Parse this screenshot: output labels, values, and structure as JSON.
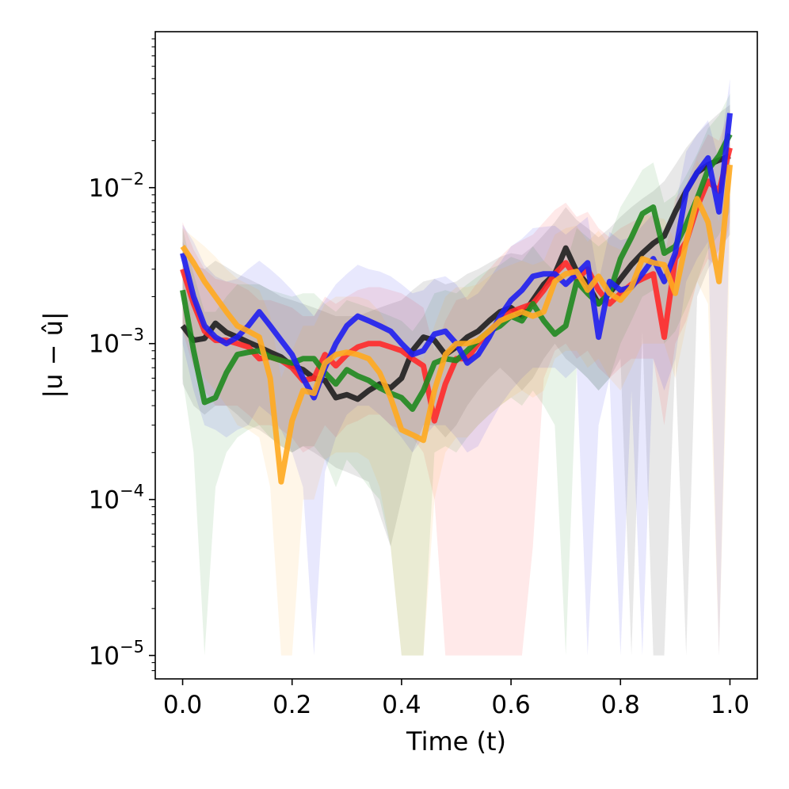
{
  "chart_data": {
    "type": "line",
    "xlabel": "Time (t)",
    "ylabel": "|u − û|",
    "xlim": [
      -0.05,
      1.05
    ],
    "ylim_log10": [
      -5.15,
      -1.0
    ],
    "y_scale": "log",
    "grid": false,
    "legend": "none",
    "x_ticks": [
      {
        "value": 0.0,
        "label": "0.0"
      },
      {
        "value": 0.2,
        "label": "0.2"
      },
      {
        "value": 0.4,
        "label": "0.4"
      },
      {
        "value": 0.6,
        "label": "0.6"
      },
      {
        "value": 0.8,
        "label": "0.8"
      },
      {
        "value": 1.0,
        "label": "1.0"
      }
    ],
    "y_ticks": [
      {
        "exp": -2,
        "base": "10",
        "sup": "−2"
      },
      {
        "exp": -3,
        "base": "10",
        "sup": "−3"
      },
      {
        "exp": -4,
        "base": "10",
        "sup": "−4"
      },
      {
        "exp": -5,
        "base": "10",
        "sup": "−5"
      }
    ],
    "x": [
      0.0,
      0.02,
      0.04,
      0.06,
      0.08,
      0.1,
      0.12,
      0.14,
      0.16,
      0.18,
      0.2,
      0.22,
      0.24,
      0.26,
      0.28,
      0.3,
      0.32,
      0.34,
      0.36,
      0.38,
      0.4,
      0.42,
      0.44,
      0.46,
      0.48,
      0.5,
      0.52,
      0.54,
      0.56,
      0.58,
      0.6,
      0.62,
      0.64,
      0.66,
      0.68,
      0.7,
      0.72,
      0.74,
      0.76,
      0.78,
      0.8,
      0.82,
      0.84,
      0.86,
      0.88,
      0.9,
      0.92,
      0.94,
      0.96,
      0.98,
      1.0
    ],
    "series": [
      {
        "color": "#1f1f1f",
        "values": [
          0.0013,
          0.00105,
          0.00108,
          0.00135,
          0.00118,
          0.0011,
          0.00102,
          0.00095,
          0.00088,
          0.00082,
          0.00072,
          0.00068,
          0.0006,
          0.00058,
          0.00045,
          0.00047,
          0.00044,
          0.0005,
          0.00055,
          0.00052,
          0.0006,
          0.0009,
          0.0011,
          0.00105,
          0.00085,
          0.00095,
          0.0011,
          0.0012,
          0.0014,
          0.0016,
          0.0017,
          0.0015,
          0.0019,
          0.0024,
          0.0028,
          0.0041,
          0.0029,
          0.0024,
          0.0018,
          0.0021,
          0.0026,
          0.0032,
          0.0038,
          0.0044,
          0.0049,
          0.007,
          0.0095,
          0.0125,
          0.014,
          0.015,
          0.016
        ],
        "lower": [
          0.00055,
          0.0004,
          0.00035,
          0.0004,
          0.0004,
          0.00035,
          0.0003,
          0.00028,
          0.00025,
          0.00022,
          0.0002,
          0.00022,
          0.0002,
          0.00018,
          0.00016,
          0.00015,
          0.00014,
          0.00013,
          8e-05,
          5e-05,
          0.0001,
          0.0002,
          0.0003,
          0.0003,
          0.00025,
          0.0003,
          0.0004,
          0.0005,
          0.0006,
          0.0007,
          0.0006,
          0.0005,
          0.0006,
          0.0008,
          0.001,
          0.0008,
          0.0007,
          0.0006,
          0.0005,
          0.0006,
          0.0008,
          1e-05,
          0.0012,
          1e-05,
          1e-05,
          0.0008,
          1e-05,
          0.002,
          0.003,
          0.004,
          0.005
        ],
        "upper": [
          0.0045,
          0.0032,
          0.003,
          0.0034,
          0.0031,
          0.0028,
          0.0026,
          0.0024,
          0.0022,
          0.002,
          0.0019,
          0.0018,
          0.0017,
          0.0016,
          0.0015,
          0.0015,
          0.0015,
          0.0016,
          0.0017,
          0.0018,
          0.0019,
          0.0022,
          0.0025,
          0.0026,
          0.0024,
          0.0025,
          0.0028,
          0.003,
          0.0033,
          0.0036,
          0.0038,
          0.0037,
          0.0042,
          0.005,
          0.006,
          0.0075,
          0.0062,
          0.0055,
          0.0048,
          0.0055,
          0.0065,
          0.0075,
          0.0085,
          0.0095,
          0.011,
          0.014,
          0.018,
          0.022,
          0.026,
          0.03,
          0.034
        ]
      },
      {
        "color": "#ff2a2a",
        "values": [
          0.003,
          0.0018,
          0.0012,
          0.00105,
          0.00105,
          0.001,
          0.00095,
          0.0008,
          0.00082,
          0.00078,
          0.0007,
          0.00058,
          0.0006,
          0.00085,
          0.00072,
          0.00085,
          0.00095,
          0.001,
          0.001,
          0.00095,
          0.0009,
          0.0008,
          0.00072,
          0.00032,
          0.00055,
          0.0008,
          0.0008,
          0.001,
          0.0012,
          0.0014,
          0.0016,
          0.0017,
          0.0018,
          0.0022,
          0.0028,
          0.0033,
          0.0026,
          0.003,
          0.0022,
          0.0018,
          0.0021,
          0.0024,
          0.0026,
          0.0028,
          0.0011,
          0.0035,
          0.0045,
          0.0075,
          0.011,
          0.0095,
          0.018
        ],
        "lower": [
          0.0012,
          0.0007,
          0.0005,
          0.0004,
          0.0004,
          0.0004,
          0.00035,
          0.0003,
          0.0003,
          0.00028,
          0.00025,
          0.0002,
          0.00022,
          0.0003,
          0.00025,
          0.0003,
          0.00032,
          0.00035,
          0.00035,
          0.0003,
          0.00028,
          0.00025,
          0.0002,
          0.0001,
          1e-05,
          1e-05,
          1e-05,
          1e-05,
          1e-05,
          1e-05,
          1e-05,
          1e-05,
          5e-05,
          0.0006,
          0.0009,
          0.001,
          0.0008,
          0.0009,
          0.0007,
          0.0006,
          0.0007,
          0.0008,
          0.0008,
          0.0008,
          0.0003,
          0.001,
          0.0014,
          0.0025,
          0.0035,
          0.003,
          0.006
        ],
        "upper": [
          0.006,
          0.004,
          0.003,
          0.0026,
          0.0025,
          0.0024,
          0.0022,
          0.0019,
          0.0019,
          0.0018,
          0.0017,
          0.0015,
          0.0015,
          0.002,
          0.0018,
          0.002,
          0.0022,
          0.0023,
          0.0023,
          0.0022,
          0.0021,
          0.0019,
          0.0017,
          0.0009,
          0.0014,
          0.0019,
          0.002,
          0.0025,
          0.003,
          0.0036,
          0.0042,
          0.0046,
          0.005,
          0.006,
          0.0072,
          0.008,
          0.0065,
          0.007,
          0.0055,
          0.0048,
          0.0055,
          0.006,
          0.0065,
          0.007,
          0.0035,
          0.0085,
          0.0105,
          0.016,
          0.022,
          0.02,
          0.032
        ]
      },
      {
        "color": "#1f8a1f",
        "values": [
          0.0022,
          0.0009,
          0.00042,
          0.00045,
          0.00065,
          0.00085,
          0.00088,
          0.0009,
          0.00082,
          0.00078,
          0.00075,
          0.0008,
          0.0008,
          0.00065,
          0.00055,
          0.00068,
          0.00062,
          0.00058,
          0.00052,
          0.00048,
          0.00045,
          0.00038,
          0.0005,
          0.00075,
          0.0008,
          0.00078,
          0.0009,
          0.00105,
          0.0012,
          0.0013,
          0.0015,
          0.0014,
          0.0018,
          0.0014,
          0.00115,
          0.0013,
          0.0025,
          0.0021,
          0.0018,
          0.0021,
          0.0035,
          0.0048,
          0.0068,
          0.0075,
          0.0038,
          0.0042,
          0.0058,
          0.0085,
          0.013,
          0.016,
          0.022
        ],
        "lower": [
          0.0006,
          0.0002,
          1e-05,
          0.00012,
          0.0002,
          0.00025,
          0.00028,
          0.0003,
          0.00025,
          0.00022,
          0.0002,
          0.00022,
          0.00022,
          0.00018,
          0.00012,
          0.00018,
          0.00015,
          0.00012,
          0.0001,
          5e-05,
          1e-05,
          1e-05,
          1e-05,
          0.0002,
          0.00022,
          0.0002,
          0.00025,
          0.0003,
          0.00035,
          0.0004,
          0.00045,
          0.0004,
          0.0005,
          0.0004,
          0.0003,
          1e-05,
          0.0007,
          0.0006,
          0.0005,
          0.0006,
          0.001,
          0.0014,
          0.002,
          0.0022,
          0.001,
          0.0012,
          0.0017,
          0.0025,
          0.004,
          0.005,
          0.007
        ],
        "upper": [
          0.0055,
          0.0028,
          0.0016,
          0.0016,
          0.002,
          0.0024,
          0.0024,
          0.0024,
          0.0022,
          0.0021,
          0.002,
          0.0021,
          0.0021,
          0.0018,
          0.0016,
          0.0019,
          0.0018,
          0.0017,
          0.0016,
          0.0015,
          0.0014,
          0.0012,
          0.0015,
          0.0021,
          0.0022,
          0.0021,
          0.0024,
          0.0027,
          0.003,
          0.0032,
          0.0036,
          0.0034,
          0.0042,
          0.0034,
          0.0029,
          0.0032,
          0.0055,
          0.0048,
          0.0042,
          0.0048,
          0.0075,
          0.0098,
          0.013,
          0.0145,
          0.008,
          0.009,
          0.012,
          0.0165,
          0.024,
          0.029,
          0.04
        ]
      },
      {
        "color": "#1f1ff0",
        "values": [
          0.0038,
          0.002,
          0.0013,
          0.0011,
          0.001,
          0.0011,
          0.0013,
          0.0016,
          0.0013,
          0.00105,
          0.00085,
          0.0006,
          0.00045,
          0.0007,
          0.001,
          0.0013,
          0.0015,
          0.0014,
          0.0013,
          0.0012,
          0.001,
          0.00085,
          0.0009,
          0.00115,
          0.0012,
          0.001,
          0.00075,
          0.00085,
          0.0011,
          0.0015,
          0.0019,
          0.0022,
          0.0027,
          0.0028,
          0.0028,
          0.0024,
          0.0028,
          0.0033,
          0.0011,
          0.0025,
          0.0022,
          0.0023,
          0.0028,
          0.0035,
          0.0025,
          0.0038,
          0.0095,
          0.0125,
          0.0155,
          0.007,
          0.03
        ],
        "lower": [
          0.001,
          0.0005,
          0.0003,
          0.00028,
          0.00025,
          0.00028,
          0.0003,
          0.0004,
          0.00035,
          0.00028,
          0.0002,
          0.00012,
          1e-05,
          0.00015,
          0.00025,
          0.00035,
          0.0004,
          0.0004,
          0.00035,
          0.0003,
          0.00025,
          0.0002,
          0.00025,
          0.0003,
          0.0003,
          0.00025,
          0.0002,
          0.00022,
          0.0003,
          0.0004,
          0.0005,
          0.0006,
          0.0007,
          0.0007,
          0.0007,
          0.0006,
          0.0007,
          1e-05,
          0.0003,
          0.0006,
          1e-05,
          0.0005,
          1e-05,
          0.0008,
          0.0005,
          0.0008,
          0.0025,
          0.0035,
          0.0045,
          1e-05,
          0.008
        ],
        "upper": [
          0.0058,
          0.0045,
          0.0032,
          0.0027,
          0.0025,
          0.0026,
          0.003,
          0.0034,
          0.003,
          0.0026,
          0.0022,
          0.0018,
          0.0015,
          0.0019,
          0.0024,
          0.0028,
          0.0032,
          0.003,
          0.0029,
          0.0027,
          0.0024,
          0.0021,
          0.0022,
          0.0026,
          0.0027,
          0.0024,
          0.0019,
          0.0021,
          0.0026,
          0.0033,
          0.0042,
          0.0047,
          0.0055,
          0.0056,
          0.0057,
          0.005,
          0.0057,
          0.0065,
          0.0025,
          0.0052,
          0.0046,
          0.0048,
          0.0057,
          0.0068,
          0.0052,
          0.0075,
          0.017,
          0.022,
          0.027,
          0.015,
          0.05
        ]
      },
      {
        "color": "#ffaa1f",
        "values": [
          0.0042,
          0.0033,
          0.0025,
          0.002,
          0.0016,
          0.0013,
          0.0012,
          0.0011,
          0.0006,
          0.00013,
          0.00032,
          0.0005,
          0.00048,
          0.00075,
          0.00085,
          0.00088,
          0.00085,
          0.0008,
          0.00065,
          0.00045,
          0.00028,
          0.00026,
          0.00024,
          0.0005,
          0.00085,
          0.001,
          0.001,
          0.00105,
          0.0012,
          0.0014,
          0.0015,
          0.0016,
          0.0015,
          0.0016,
          0.0025,
          0.0028,
          0.0029,
          0.0022,
          0.0027,
          0.0021,
          0.0019,
          0.0023,
          0.0035,
          0.0033,
          0.0032,
          0.0021,
          0.0045,
          0.0085,
          0.006,
          0.0025,
          0.014
        ],
        "lower": [
          0.0012,
          0.0009,
          0.0006,
          0.0005,
          0.0004,
          0.0003,
          0.00028,
          0.00025,
          0.00012,
          1e-05,
          1e-05,
          0.0001,
          0.0001,
          0.00018,
          0.0002,
          0.0002,
          0.0002,
          0.00018,
          0.00012,
          5e-05,
          1e-05,
          1e-05,
          1e-05,
          0.0001,
          0.0002,
          0.00025,
          0.00025,
          0.0003,
          0.00035,
          0.0004,
          0.00045,
          0.0005,
          0.00045,
          0.0005,
          0.0008,
          0.0009,
          0.0009,
          0.0007,
          0.0008,
          0.0006,
          0.0005,
          0.0007,
          0.001,
          0.001,
          0.001,
          0.0006,
          0.0013,
          0.0025,
          0.0018,
          1e-05,
          0.004
        ],
        "upper": [
          0.0055,
          0.0048,
          0.0042,
          0.0036,
          0.003,
          0.0026,
          0.0024,
          0.0022,
          0.0015,
          0.0006,
          0.0009,
          0.0013,
          0.0013,
          0.0018,
          0.002,
          0.002,
          0.002,
          0.0019,
          0.0016,
          0.0012,
          0.0009,
          0.00085,
          0.0008,
          0.0013,
          0.002,
          0.0023,
          0.0023,
          0.0024,
          0.0027,
          0.003,
          0.0032,
          0.0034,
          0.0032,
          0.0034,
          0.005,
          0.0055,
          0.0057,
          0.0045,
          0.0053,
          0.0043,
          0.004,
          0.0047,
          0.0068,
          0.0065,
          0.0063,
          0.0045,
          0.0085,
          0.015,
          0.011,
          0.006,
          0.025
        ]
      }
    ]
  }
}
